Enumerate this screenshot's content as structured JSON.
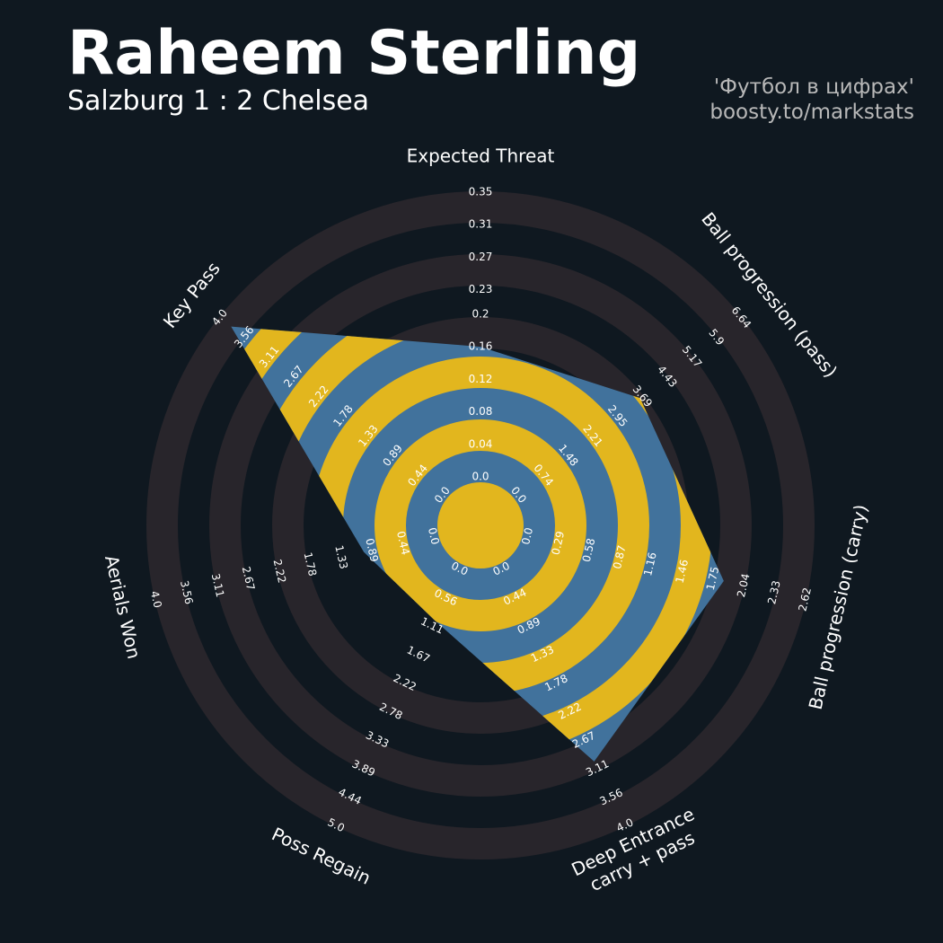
{
  "chart_data": {
    "type": "radar",
    "title": "Raheem Sterling",
    "subtitle": "Salzburg 1 : 2 Chelsea",
    "credits": [
      "'Футбол в цифрах'",
      "boosty.to/markstats"
    ],
    "params": [
      "Expected Threat",
      "Ball progression (pass)",
      "Ball progression (carry)",
      "Deep Entrance\ncarry + pass",
      "Poss Regain",
      "Aerials Won",
      "Key Pass"
    ],
    "values": [
      0.16,
      3.63,
      1.85,
      3.0,
      1.0,
      1.0,
      3.8
    ],
    "ticks": [
      [
        {
          "value": 0,
          "label": "0.0"
        },
        0.04,
        0.08,
        0.12,
        0.16,
        0.2,
        0.23,
        0.27,
        0.31,
        0.35
      ],
      [
        {
          "value": 0,
          "label": "0.0"
        },
        0.74,
        1.48,
        2.21,
        2.95,
        3.69,
        4.43,
        5.17,
        5.9,
        6.64
      ],
      [
        {
          "value": 0,
          "label": "0.0"
        },
        0.29,
        0.58,
        0.87,
        1.16,
        1.46,
        1.75,
        2.04,
        2.33,
        2.62
      ],
      [
        {
          "value": 0,
          "label": "0.0"
        },
        0.44,
        0.89,
        1.33,
        1.78,
        2.22,
        2.67,
        3.11,
        3.56,
        {
          "value": 4,
          "label": "4.0"
        }
      ],
      [
        {
          "value": 0,
          "label": "0.0"
        },
        0.56,
        1.11,
        1.67,
        2.22,
        2.78,
        3.33,
        3.89,
        4.44,
        {
          "value": 5,
          "label": "5.0"
        }
      ],
      [
        {
          "value": 0,
          "label": "0.0"
        },
        0.44,
        0.89,
        1.33,
        1.78,
        2.22,
        2.67,
        3.11,
        3.56,
        {
          "value": 4,
          "label": "4.0"
        }
      ],
      [
        {
          "value": 0,
          "label": "0.0"
        },
        0.44,
        0.89,
        1.33,
        1.78,
        2.22,
        2.67,
        3.11,
        3.56,
        {
          "value": 4,
          "label": "4.0"
        }
      ]
    ],
    "color": "#41729c",
    "ring_color": "#e2b61e"
  }
}
